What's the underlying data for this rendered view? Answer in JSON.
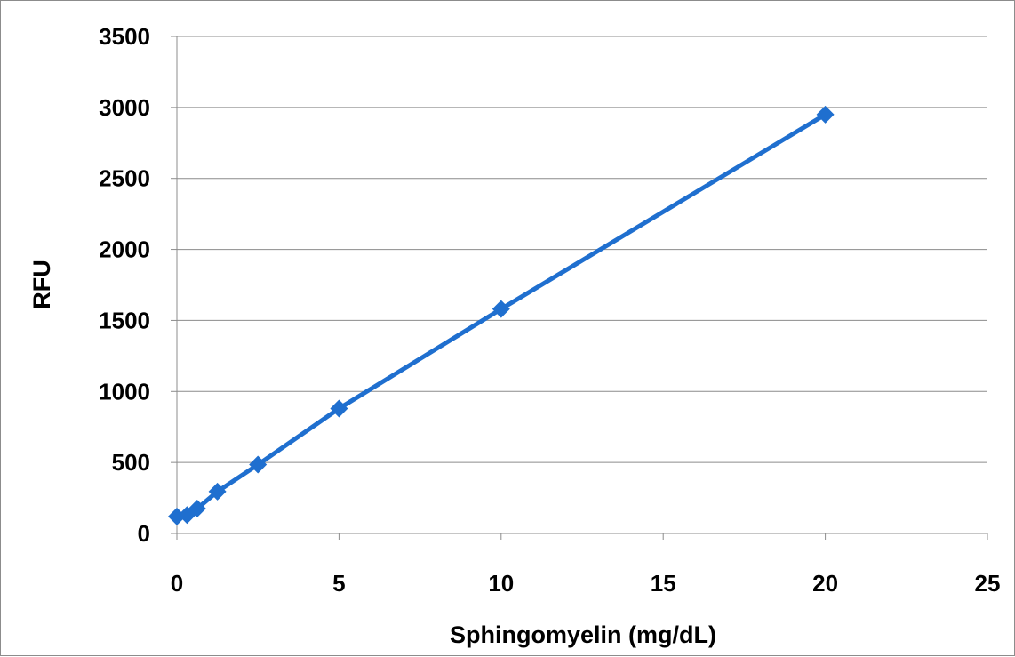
{
  "chart_data": {
    "type": "scatter",
    "title": "",
    "xlabel": "Sphingomyelin (mg/dL)",
    "ylabel": "RFU",
    "xlim": [
      0,
      25
    ],
    "ylim": [
      0,
      3500
    ],
    "x_ticks": [
      0,
      5,
      10,
      15,
      20,
      25
    ],
    "y_ticks": [
      0,
      500,
      1000,
      1500,
      2000,
      2500,
      3000,
      3500
    ],
    "x_tick_labels": [
      "0",
      "5",
      "10",
      "15",
      "20",
      "25"
    ],
    "y_tick_labels": [
      "0",
      "500",
      "1000",
      "1500",
      "2000",
      "2500",
      "3000",
      "3500"
    ],
    "grid": "horizontal major gridlines",
    "legend": "none",
    "marker": "diamond",
    "series": [
      {
        "color": "#1f6fcf",
        "points": [
          {
            "x": 0,
            "y": 120
          },
          {
            "x": 0.313,
            "y": 130
          },
          {
            "x": 0.625,
            "y": 175
          },
          {
            "x": 1.25,
            "y": 295
          },
          {
            "x": 2.5,
            "y": 485
          },
          {
            "x": 5,
            "y": 880
          },
          {
            "x": 10,
            "y": 1580
          },
          {
            "x": 20,
            "y": 2950
          }
        ]
      }
    ]
  }
}
